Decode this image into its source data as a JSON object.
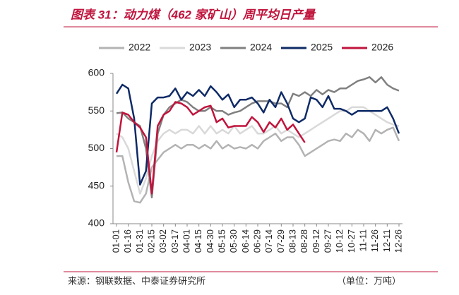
{
  "chart_data": {
    "type": "line",
    "title": "图表 31：动力煤（462 家矿山）周平均日产量",
    "source": "来源：钢联数据、中泰证券研究所",
    "unit": "（单位：万吨）",
    "categories": [
      "01-01",
      null,
      "01-16",
      null,
      "01-31",
      null,
      "02-15",
      null,
      "03-02",
      null,
      "03-17",
      null,
      "04-01",
      null,
      "04-15",
      null,
      "04-30",
      null,
      "05-15",
      null,
      "05-30",
      null,
      "06-14",
      null,
      "06-29",
      null,
      "07-14",
      null,
      "07-29",
      null,
      "08-13",
      null,
      "08-28",
      null,
      "09-12",
      null,
      "09-27",
      null,
      "10-12",
      null,
      "10-27",
      null,
      "11-11",
      null,
      "11-26",
      null,
      "12-11",
      null,
      "12-26"
    ],
    "ylim": [
      400,
      600
    ],
    "yticks": [
      400,
      450,
      500,
      550,
      600
    ],
    "grid": false,
    "legend": "top",
    "series": [
      {
        "name": "2022",
        "color": "#b3b3b3",
        "values": [
          490,
          490,
          455,
          430,
          428,
          440,
          475,
          485,
          495,
          500,
          505,
          500,
          505,
          505,
          500,
          505,
          500,
          510,
          500,
          505,
          500,
          502,
          500,
          505,
          500,
          510,
          515,
          520,
          510,
          515,
          515,
          505,
          490,
          495,
          500,
          505,
          510,
          512,
          510,
          520,
          515,
          525,
          520,
          510,
          525,
          520,
          525,
          528,
          510
        ]
      },
      {
        "name": "2023",
        "color": "#d9d9d9",
        "values": [
          520,
          515,
          500,
          470,
          440,
          460,
          490,
          510,
          520,
          525,
          520,
          525,
          525,
          520,
          530,
          520,
          530,
          520,
          525,
          520,
          530,
          520,
          525,
          530,
          520,
          520,
          525,
          530,
          520,
          525,
          520,
          515,
          520,
          525,
          530,
          535,
          540,
          545,
          550,
          550,
          555,
          555,
          555,
          550,
          545,
          540,
          535,
          532,
          530
        ]
      },
      {
        "name": "2024",
        "color": "#808080",
        "values": [
          547,
          548,
          540,
          535,
          530,
          500,
          435,
          520,
          545,
          555,
          560,
          565,
          562,
          555,
          550,
          550,
          555,
          550,
          550,
          545,
          548,
          550,
          555,
          560,
          563,
          563,
          563,
          560,
          560,
          555,
          573,
          570,
          575,
          570,
          578,
          572,
          578,
          575,
          580,
          580,
          585,
          590,
          592,
          595,
          588,
          595,
          585,
          580,
          577
        ]
      },
      {
        "name": "2025",
        "color": "#0e2a66",
        "values": [
          573,
          585,
          580,
          540,
          452,
          470,
          560,
          568,
          568,
          570,
          580,
          565,
          575,
          570,
          578,
          570,
          583,
          575,
          565,
          572,
          555,
          565,
          565,
          568,
          560,
          548,
          565,
          555,
          575,
          560,
          540,
          535,
          540,
          568,
          565,
          555,
          570,
          553,
          553,
          550,
          545,
          550,
          550,
          550,
          550,
          550,
          555,
          540,
          520
        ]
      },
      {
        "name": "2026",
        "color": "#c0143c",
        "values": [
          495,
          548,
          545,
          535,
          528,
          515,
          440,
          530,
          545,
          550,
          562,
          560,
          555,
          545,
          550,
          555,
          557,
          535,
          540,
          528,
          530,
          530,
          530,
          542,
          535,
          522,
          535,
          528,
          540,
          525,
          532,
          520,
          508,
          null,
          null,
          null,
          null,
          null,
          null,
          null,
          null,
          null,
          null,
          null,
          null,
          null,
          null,
          null,
          null
        ]
      }
    ]
  }
}
